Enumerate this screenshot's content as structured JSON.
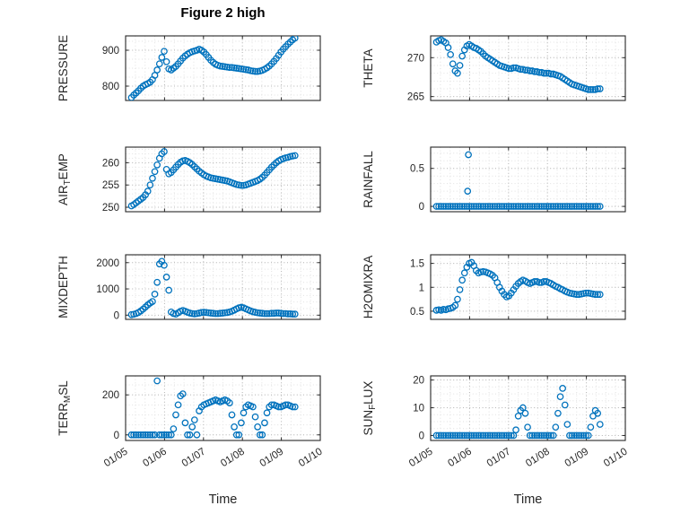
{
  "title": "Figure 2 high",
  "x_axis": {
    "label": "Time",
    "lim": [
      5,
      10
    ],
    "ticks": [
      5,
      6,
      7,
      8,
      9,
      10
    ],
    "tick_labels": [
      "01/05",
      "01/06",
      "01/07",
      "01/08",
      "01/09",
      "01/10"
    ],
    "minor_step": 0.25
  },
  "style": {
    "marker_color": "#0072BD",
    "axis_color": "#262626",
    "major_grid_color": "#b8b8b8",
    "minor_grid_color": "#e2e2e2",
    "background": "#ffffff"
  },
  "x_common": [
    5.15,
    5.21,
    5.27,
    5.33,
    5.39,
    5.45,
    5.51,
    5.57,
    5.63,
    5.69,
    5.75,
    5.81,
    5.87,
    5.93,
    5.99,
    6.05,
    6.11,
    6.17,
    6.23,
    6.29,
    6.35,
    6.41,
    6.47,
    6.53,
    6.59,
    6.65,
    6.71,
    6.77,
    6.83,
    6.89,
    6.95,
    7.01,
    7.07,
    7.13,
    7.19,
    7.25,
    7.31,
    7.37,
    7.43,
    7.49,
    7.55,
    7.61,
    7.67,
    7.73,
    7.79,
    7.85,
    7.91,
    7.97,
    8.03,
    8.09,
    8.15,
    8.21,
    8.27,
    8.33,
    8.39,
    8.45,
    8.51,
    8.57,
    8.63,
    8.69,
    8.75,
    8.81,
    8.87,
    8.93,
    8.99,
    9.05,
    9.11,
    9.17,
    9.23,
    9.29,
    9.35
  ],
  "chart_data": [
    {
      "id": "pressure",
      "type": "scatter",
      "ylabel_parts": [
        {
          "t": "PRESSURE",
          "sub": false
        }
      ],
      "ylim": [
        760,
        940
      ],
      "yticks": [
        {
          "v": 800,
          "label": "800"
        },
        {
          "v": 900,
          "label": "900"
        }
      ],
      "yminor_step": 25,
      "show_x_labels": false,
      "extra_points": [],
      "y": [
        768,
        775,
        781,
        787,
        794,
        800,
        804,
        807,
        811,
        818,
        830,
        845,
        862,
        880,
        897,
        868,
        848,
        845,
        850,
        855,
        862,
        870,
        878,
        884,
        889,
        893,
        896,
        898,
        900,
        903,
        900,
        895,
        888,
        880,
        872,
        866,
        861,
        858,
        856,
        855,
        854,
        853,
        852,
        852,
        851,
        850,
        849,
        848,
        847,
        846,
        845,
        843,
        842,
        841,
        841,
        842,
        844,
        847,
        851,
        856,
        862,
        869,
        877,
        886,
        895,
        903,
        910,
        917,
        923,
        929,
        934
      ]
    },
    {
      "id": "theta",
      "type": "scatter",
      "ylabel_parts": [
        {
          "t": "THETA",
          "sub": false
        }
      ],
      "ylim": [
        264.5,
        272.8
      ],
      "yticks": [
        {
          "v": 265,
          "label": "265"
        },
        {
          "v": 270,
          "label": "270"
        }
      ],
      "yminor_step": 1,
      "show_x_labels": false,
      "extra_points": [],
      "y": [
        272.0,
        272.2,
        272.3,
        272.1,
        271.9,
        271.3,
        270.4,
        269.2,
        268.3,
        268.0,
        269.0,
        270.2,
        271.0,
        271.5,
        271.7,
        271.5,
        271.3,
        271.2,
        271.0,
        270.8,
        270.5,
        270.2,
        270.0,
        269.8,
        269.6,
        269.4,
        269.2,
        269.0,
        268.9,
        268.8,
        268.7,
        268.6,
        268.6,
        268.7,
        268.7,
        268.6,
        268.5,
        268.5,
        268.4,
        268.4,
        268.3,
        268.3,
        268.2,
        268.2,
        268.1,
        268.1,
        268.0,
        268.0,
        268.0,
        267.9,
        267.9,
        267.8,
        267.7,
        267.6,
        267.4,
        267.2,
        267.0,
        266.8,
        266.6,
        266.5,
        266.4,
        266.3,
        266.2,
        266.1,
        266.0,
        265.9,
        265.9,
        265.9,
        265.9,
        266.0,
        266.0
      ]
    },
    {
      "id": "airtemp",
      "type": "scatter",
      "ylabel_parts": [
        {
          "t": "AIR",
          "sub": false
        },
        {
          "t": "T",
          "sub": true
        },
        {
          "t": "EMP",
          "sub": false
        }
      ],
      "ylim": [
        249,
        263.5
      ],
      "yticks": [
        {
          "v": 250,
          "label": "250"
        },
        {
          "v": 255,
          "label": "255"
        },
        {
          "v": 260,
          "label": "260"
        }
      ],
      "yminor_step": 1,
      "show_x_labels": false,
      "extra_points": [],
      "y": [
        250.3,
        250.6,
        251.0,
        251.4,
        251.8,
        252.2,
        252.8,
        253.6,
        255.0,
        256.5,
        258.0,
        259.5,
        261.0,
        262.0,
        262.5,
        258.5,
        257.5,
        257.8,
        258.4,
        259.0,
        259.6,
        260.1,
        260.4,
        260.5,
        260.3,
        260.0,
        259.6,
        259.1,
        258.6,
        258.1,
        257.7,
        257.3,
        257.0,
        256.8,
        256.6,
        256.5,
        256.4,
        256.3,
        256.2,
        256.1,
        256.0,
        255.9,
        255.7,
        255.5,
        255.3,
        255.1,
        255.0,
        254.9,
        254.9,
        255.0,
        255.2,
        255.4,
        255.6,
        255.8,
        256.0,
        256.3,
        256.7,
        257.2,
        257.8,
        258.4,
        259.0,
        259.5,
        260.0,
        260.4,
        260.7,
        260.9,
        261.1,
        261.2,
        261.4,
        261.5,
        261.6
      ]
    },
    {
      "id": "rainfall",
      "type": "scatter",
      "ylabel_parts": [
        {
          "t": "RAINFALL",
          "sub": false
        }
      ],
      "ylim": [
        -0.07,
        0.78
      ],
      "yticks": [
        {
          "v": 0,
          "label": "0"
        },
        {
          "v": 0.5,
          "label": "0.5"
        }
      ],
      "yminor_step": 0.1,
      "show_x_labels": false,
      "extra_points": [
        [
          5.95,
          0.2
        ],
        [
          5.97,
          0.68
        ]
      ],
      "y": [
        0,
        0,
        0,
        0,
        0,
        0,
        0,
        0,
        0,
        0,
        0,
        0,
        0,
        0,
        0,
        0,
        0,
        0,
        0,
        0,
        0,
        0,
        0,
        0,
        0,
        0,
        0,
        0,
        0,
        0,
        0,
        0,
        0,
        0,
        0,
        0,
        0,
        0,
        0,
        0,
        0,
        0,
        0,
        0,
        0,
        0,
        0,
        0,
        0,
        0,
        0,
        0,
        0,
        0,
        0,
        0,
        0,
        0,
        0,
        0,
        0,
        0,
        0,
        0,
        0,
        0,
        0,
        0,
        0,
        0,
        0
      ]
    },
    {
      "id": "mixdepth",
      "type": "scatter",
      "ylabel_parts": [
        {
          "t": "MIXDEPTH",
          "sub": false
        }
      ],
      "ylim": [
        -160,
        2300
      ],
      "yticks": [
        {
          "v": 0,
          "label": "0"
        },
        {
          "v": 1000,
          "label": "1000"
        },
        {
          "v": 2000,
          "label": "2000"
        }
      ],
      "yminor_step": 250,
      "show_x_labels": false,
      "extra_points": [],
      "y": [
        20,
        35,
        60,
        100,
        160,
        230,
        310,
        390,
        460,
        520,
        800,
        1250,
        1950,
        2050,
        1900,
        1450,
        950,
        120,
        60,
        40,
        90,
        150,
        180,
        150,
        110,
        80,
        60,
        50,
        60,
        80,
        100,
        110,
        100,
        90,
        80,
        70,
        60,
        60,
        70,
        80,
        90,
        100,
        120,
        150,
        190,
        240,
        280,
        300,
        280,
        240,
        200,
        160,
        130,
        110,
        90,
        80,
        70,
        60,
        60,
        60,
        70,
        70,
        80,
        80,
        70,
        60,
        60,
        50,
        50,
        40,
        40
      ]
    },
    {
      "id": "h2omixra",
      "type": "scatter",
      "ylabel_parts": [
        {
          "t": "H2OMIXRA",
          "sub": false
        }
      ],
      "ylim": [
        0.33,
        1.68
      ],
      "yticks": [
        {
          "v": 0.5,
          "label": "0.5"
        },
        {
          "v": 1,
          "label": "1"
        },
        {
          "v": 1.5,
          "label": "1.5"
        }
      ],
      "yminor_step": 0.25,
      "show_x_labels": false,
      "extra_points": [],
      "y": [
        0.52,
        0.53,
        0.52,
        0.54,
        0.53,
        0.55,
        0.56,
        0.58,
        0.62,
        0.75,
        0.95,
        1.15,
        1.3,
        1.42,
        1.5,
        1.52,
        1.45,
        1.35,
        1.3,
        1.32,
        1.33,
        1.32,
        1.3,
        1.28,
        1.25,
        1.2,
        1.1,
        1.0,
        0.92,
        0.85,
        0.8,
        0.82,
        0.88,
        0.95,
        1.02,
        1.08,
        1.12,
        1.15,
        1.13,
        1.1,
        1.08,
        1.1,
        1.12,
        1.12,
        1.1,
        1.1,
        1.12,
        1.12,
        1.1,
        1.08,
        1.05,
        1.02,
        1.0,
        0.97,
        0.95,
        0.92,
        0.9,
        0.88,
        0.87,
        0.86,
        0.85,
        0.85,
        0.86,
        0.87,
        0.88,
        0.88,
        0.87,
        0.86,
        0.85,
        0.85,
        0.85
      ]
    },
    {
      "id": "terrmsl",
      "type": "scatter",
      "ylabel_parts": [
        {
          "t": "TERR",
          "sub": false
        },
        {
          "t": "M",
          "sub": true
        },
        {
          "t": "SL",
          "sub": false
        }
      ],
      "ylim": [
        -28,
        295
      ],
      "yticks": [
        {
          "v": 0,
          "label": "0"
        },
        {
          "v": 200,
          "label": "200"
        }
      ],
      "yminor_step": 50,
      "show_x_labels": true,
      "extra_points": [],
      "y": [
        0,
        0,
        0,
        0,
        0,
        0,
        0,
        0,
        0,
        0,
        0,
        270,
        0,
        0,
        0,
        0,
        0,
        0,
        30,
        100,
        150,
        195,
        205,
        60,
        0,
        0,
        40,
        75,
        0,
        120,
        140,
        150,
        155,
        160,
        165,
        170,
        175,
        170,
        165,
        170,
        175,
        170,
        160,
        100,
        40,
        0,
        0,
        60,
        110,
        140,
        150,
        145,
        140,
        90,
        40,
        0,
        0,
        60,
        110,
        140,
        150,
        150,
        145,
        140,
        140,
        145,
        150,
        150,
        145,
        140,
        140
      ]
    },
    {
      "id": "sunflux",
      "type": "scatter",
      "ylabel_parts": [
        {
          "t": "SUN",
          "sub": false
        },
        {
          "t": "F",
          "sub": true
        },
        {
          "t": "LUX",
          "sub": false
        }
      ],
      "ylim": [
        -1.8,
        21.5
      ],
      "yticks": [
        {
          "v": 0,
          "label": "0"
        },
        {
          "v": 10,
          "label": "10"
        },
        {
          "v": 20,
          "label": "20"
        }
      ],
      "yminor_step": 2.5,
      "show_x_labels": true,
      "extra_points": [],
      "y": [
        0,
        0,
        0,
        0,
        0,
        0,
        0,
        0,
        0,
        0,
        0,
        0,
        0,
        0,
        0,
        0,
        0,
        0,
        0,
        0,
        0,
        0,
        0,
        0,
        0,
        0,
        0,
        0,
        0,
        0,
        0,
        0,
        0,
        0,
        2,
        7,
        9,
        10,
        8,
        3,
        0,
        0,
        0,
        0,
        0,
        0,
        0,
        0,
        0,
        0,
        0,
        3,
        8,
        14,
        17,
        11,
        4,
        0,
        0,
        0,
        0,
        0,
        0,
        0,
        0,
        0,
        3,
        7,
        9,
        8,
        4
      ]
    }
  ]
}
